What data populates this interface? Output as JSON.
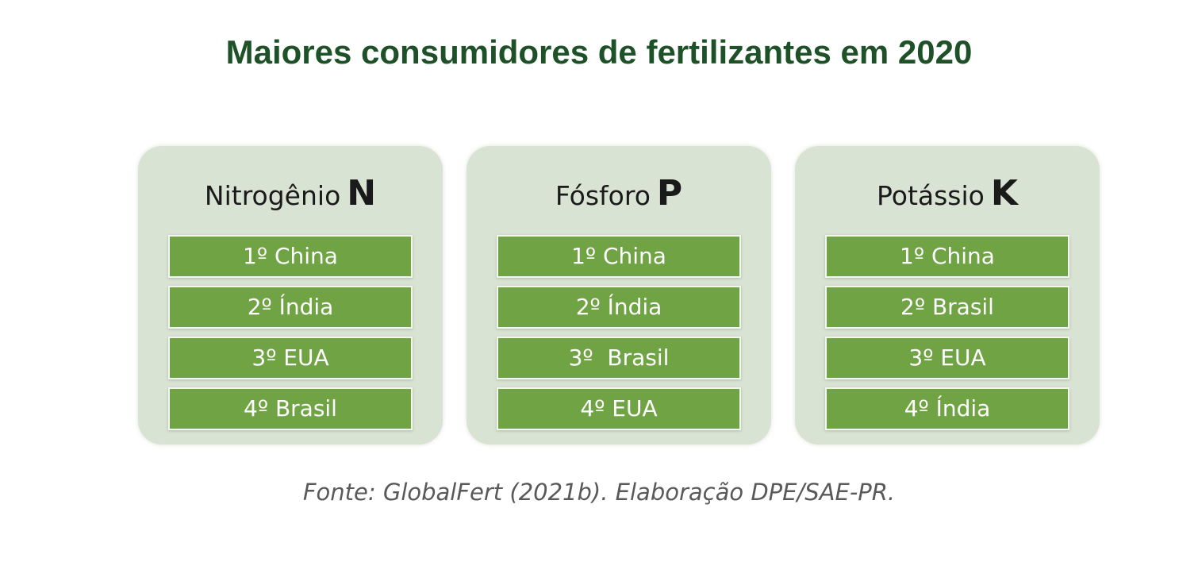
{
  "title": "Maiores consumidores de fertilizantes em 2020",
  "panels": [
    {
      "name": "Nitrogênio",
      "symbol": "N",
      "ranking": [
        "1º China",
        "2º Índia",
        "3º EUA",
        "4º Brasil"
      ]
    },
    {
      "name": "Fósforo",
      "symbol": "P",
      "ranking": [
        "1º China",
        "2º Índia",
        "3º  Brasil",
        "4º EUA"
      ]
    },
    {
      "name": "Potássio",
      "symbol": "K",
      "ranking": [
        "1º China",
        "2º Brasil",
        "3º EUA",
        "4º Índia"
      ]
    }
  ],
  "source": "Fonte: GlobalFert (2021b). Elaboração DPE/SAE-PR.",
  "colors": {
    "title": "#1e5128",
    "panel_background": "#d9e3d3",
    "rank_box": "#70a344",
    "rank_text": "#ffffff",
    "source_text": "#595959"
  }
}
